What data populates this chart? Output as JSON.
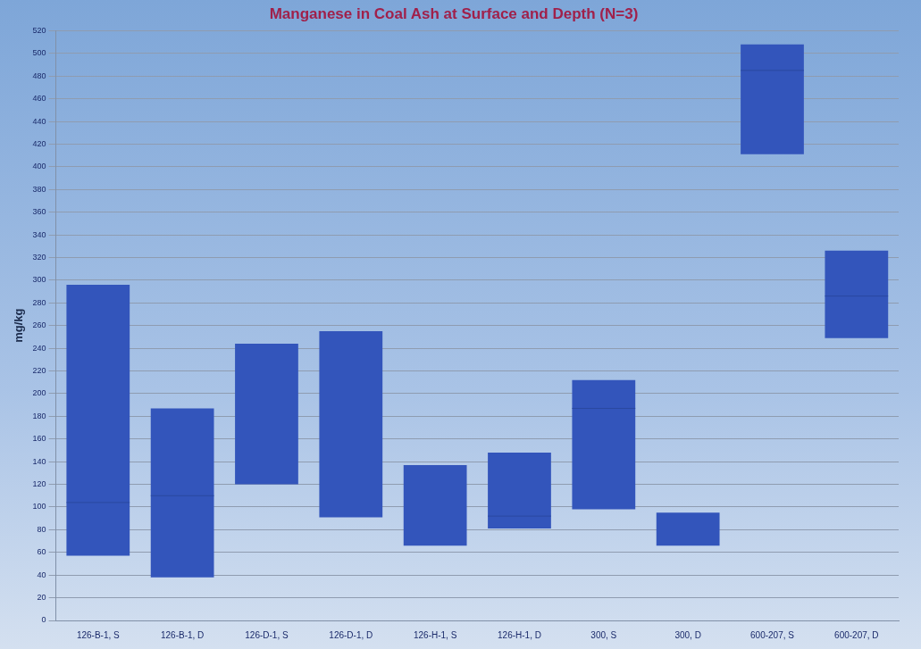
{
  "chart_data": {
    "type": "box",
    "title": "Manganese in Coal Ash at Surface and Depth (N=3)",
    "ylabel": "mg/kg",
    "categories": [
      "126-B-1, S",
      "126-B-1, D",
      "126-D-1, S",
      "126-D-1, D",
      "126-H-1, S",
      "126-H-1, D",
      "300, S",
      "300, D",
      "600-207, S",
      "600-207, D"
    ],
    "color": "#3355bb",
    "boxes": [
      {
        "low": 57,
        "q1": 57,
        "median": 104,
        "q3": 296,
        "high": 296
      },
      {
        "low": 38,
        "q1": 38,
        "median": 110,
        "q3": 187,
        "high": 187
      },
      {
        "low": 120,
        "q1": 120,
        "median": null,
        "q3": 244,
        "high": 244
      },
      {
        "low": 91,
        "q1": 91,
        "median": null,
        "q3": 255,
        "high": 255
      },
      {
        "low": 66,
        "q1": 66,
        "median": null,
        "q3": 137,
        "high": 137
      },
      {
        "low": 81,
        "q1": 81,
        "median": 92,
        "q3": 148,
        "high": 148
      },
      {
        "low": 98,
        "q1": 98,
        "median": 187,
        "q3": 212,
        "high": 212
      },
      {
        "low": 66,
        "q1": 66,
        "median": null,
        "q3": 95,
        "high": 95
      },
      {
        "low": 411,
        "q1": 411,
        "median": 485,
        "q3": 508,
        "high": 508
      },
      {
        "low": 249,
        "q1": 249,
        "median": 286,
        "q3": 326,
        "high": 326
      }
    ],
    "ylim": [
      0,
      520
    ],
    "yticks": [
      0,
      20,
      40,
      60,
      80,
      100,
      120,
      140,
      160,
      180,
      200,
      220,
      240,
      260,
      280,
      300,
      320,
      340,
      360,
      380,
      400,
      420,
      440,
      460,
      480,
      500,
      520
    ],
    "grid": "y",
    "legend": false
  }
}
